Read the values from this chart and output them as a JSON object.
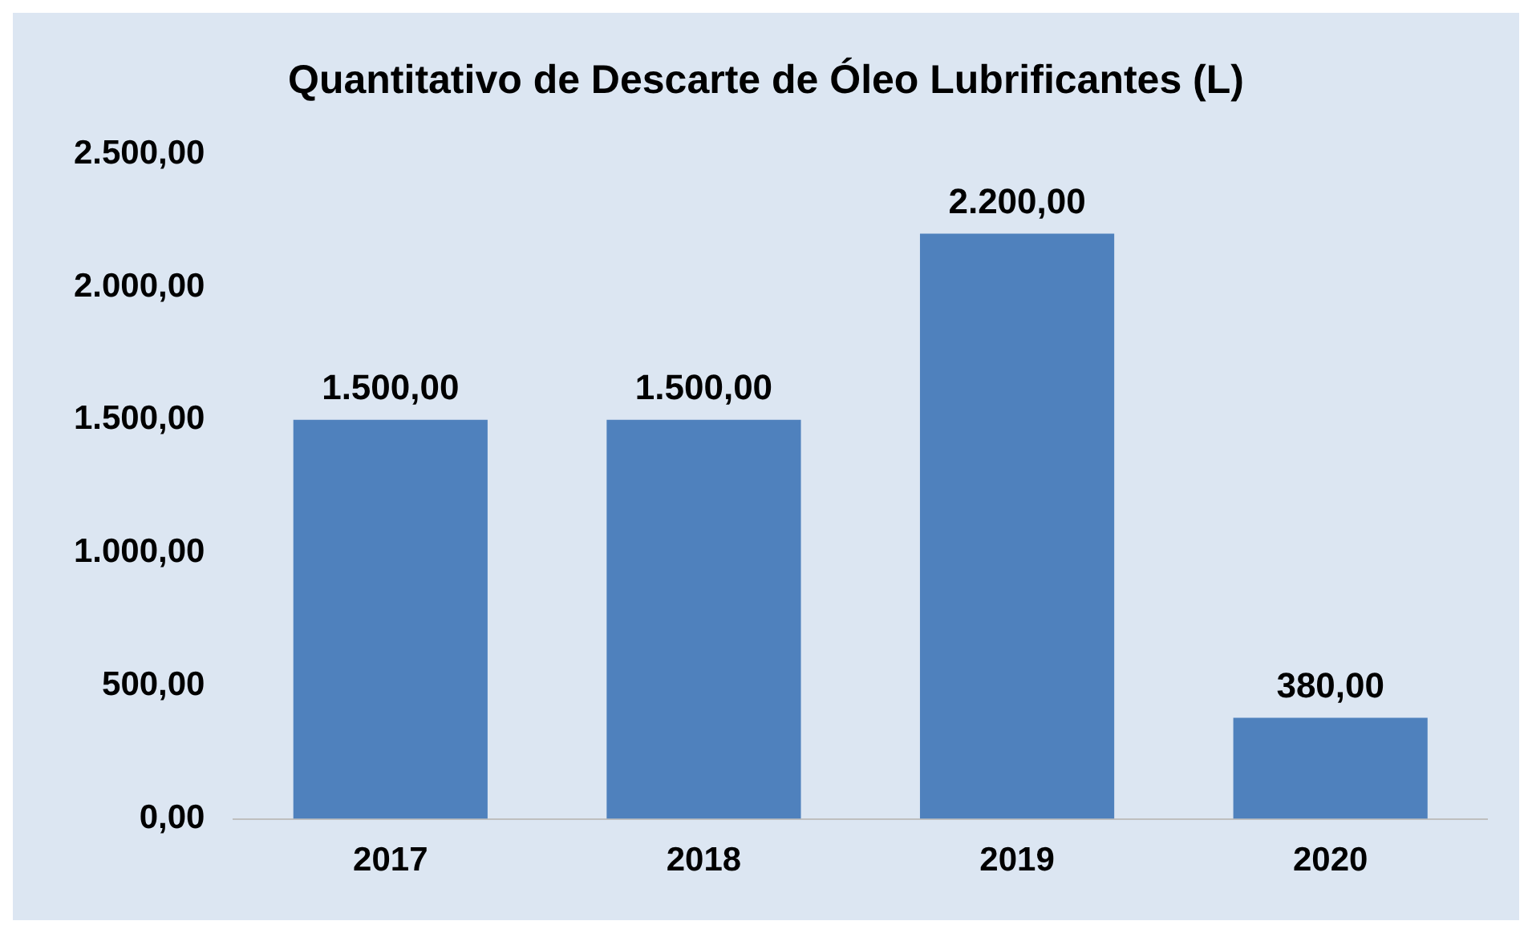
{
  "chart_data": {
    "type": "bar",
    "title": "Quantitativo de Descarte de Óleo Lubrificantes (L)",
    "categories": [
      "2017",
      "2018",
      "2019",
      "2020"
    ],
    "values": [
      1500,
      1500,
      2200,
      380
    ],
    "value_labels": [
      "1.500,00",
      "1.500,00",
      "2.200,00",
      "380,00"
    ],
    "color": "#4f81bd",
    "ylim": [
      0,
      2500
    ],
    "yticks": [
      {
        "value": 0,
        "label": "0,00"
      },
      {
        "value": 500,
        "label": "500,00"
      },
      {
        "value": 1000,
        "label": "1.000,00"
      },
      {
        "value": 1500,
        "label": "1.500,00"
      },
      {
        "value": 2000,
        "label": "2.000,00"
      },
      {
        "value": 2500,
        "label": "2.500,00"
      }
    ],
    "grid": false,
    "legend": false
  }
}
